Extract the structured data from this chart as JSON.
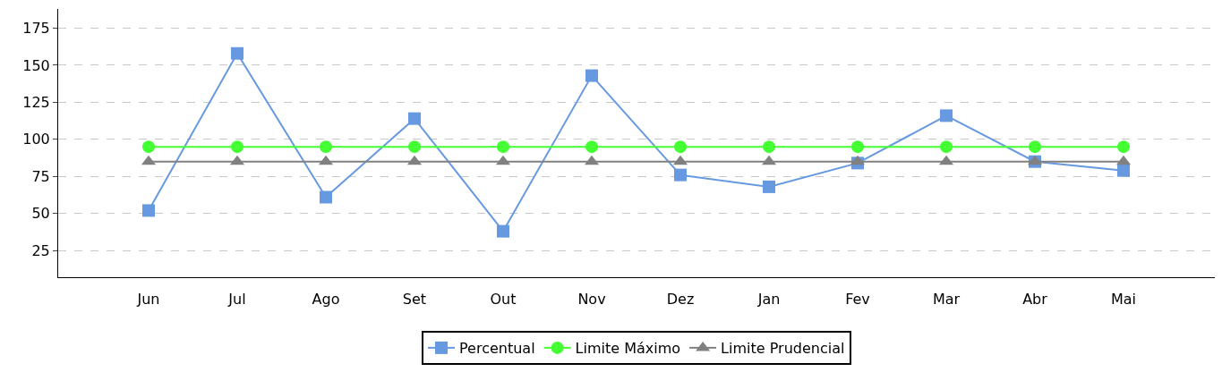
{
  "chart_data": {
    "type": "line",
    "categories": [
      "Jun",
      "Jul",
      "Ago",
      "Set",
      "Out",
      "Nov",
      "Dez",
      "Jan",
      "Fev",
      "Mar",
      "Abr",
      "Mai"
    ],
    "series": [
      {
        "name": "Percentual",
        "color": "#6699e0",
        "marker": "square",
        "values": [
          52,
          158,
          61,
          114,
          38,
          143,
          76,
          68,
          84,
          116,
          85,
          79
        ]
      },
      {
        "name": "Limite Máximo",
        "color": "#44ff33",
        "marker": "circle",
        "values": [
          95,
          95,
          95,
          95,
          95,
          95,
          95,
          95,
          95,
          95,
          95,
          95
        ]
      },
      {
        "name": "Limite Prudencial",
        "color": "#808080",
        "marker": "triangle",
        "values": [
          85,
          85,
          85,
          85,
          85,
          85,
          85,
          85,
          85,
          85,
          85,
          85
        ]
      }
    ],
    "ylim": [
      7,
      188
    ],
    "yticks": [
      25,
      50,
      75,
      100,
      125,
      150,
      175
    ],
    "grid": "y",
    "legend": "bottom",
    "line_style": "solid"
  }
}
